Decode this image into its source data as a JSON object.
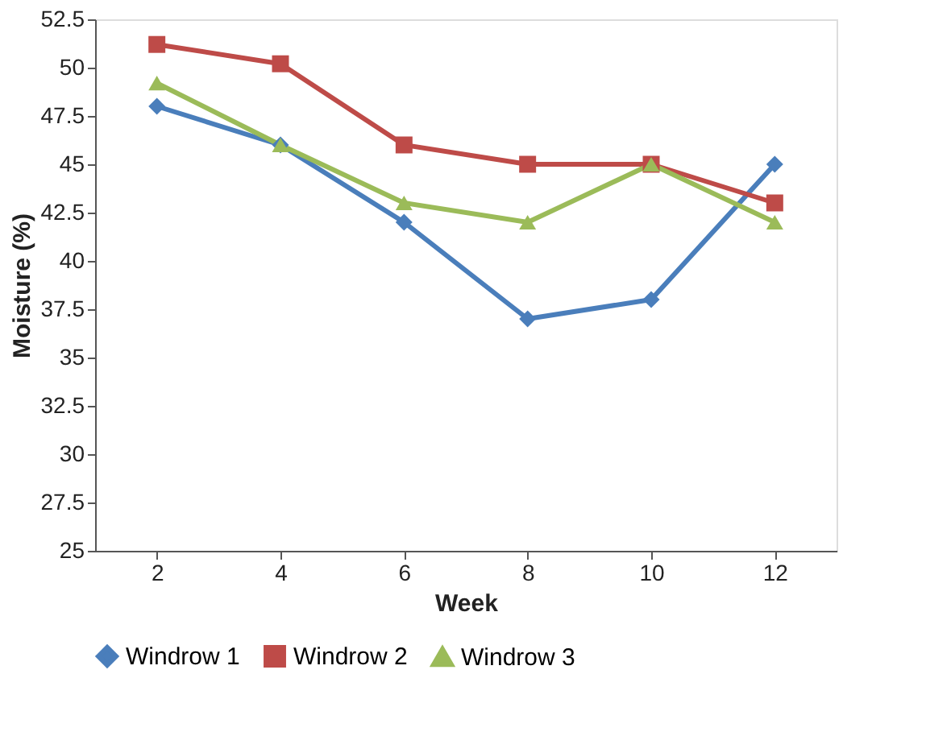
{
  "chart_data": {
    "type": "line",
    "xlabel": "Week",
    "ylabel": "Moisture (%)",
    "categories": [
      "2",
      "4",
      "6",
      "8",
      "10",
      "12"
    ],
    "series": [
      {
        "name": "Windrow 1",
        "color": "#4a7ebb",
        "marker": "diamond",
        "values": [
          48,
          46,
          42,
          37,
          38,
          45
        ]
      },
      {
        "name": "Windrow 2",
        "color": "#be4b48",
        "marker": "square",
        "values": [
          51.2,
          50.2,
          46,
          45,
          45,
          43
        ]
      },
      {
        "name": "Windrow 3",
        "color": "#9bbb59",
        "marker": "triangle",
        "values": [
          49.2,
          46,
          43,
          42,
          45,
          42
        ]
      }
    ],
    "ylim": [
      25,
      52.5
    ],
    "yticks": [
      25,
      27.5,
      30,
      32.5,
      35,
      37.5,
      40,
      42.5,
      45,
      47.5,
      50,
      52.5
    ],
    "grid": false,
    "legend": "bottom",
    "line_style": "solid"
  }
}
